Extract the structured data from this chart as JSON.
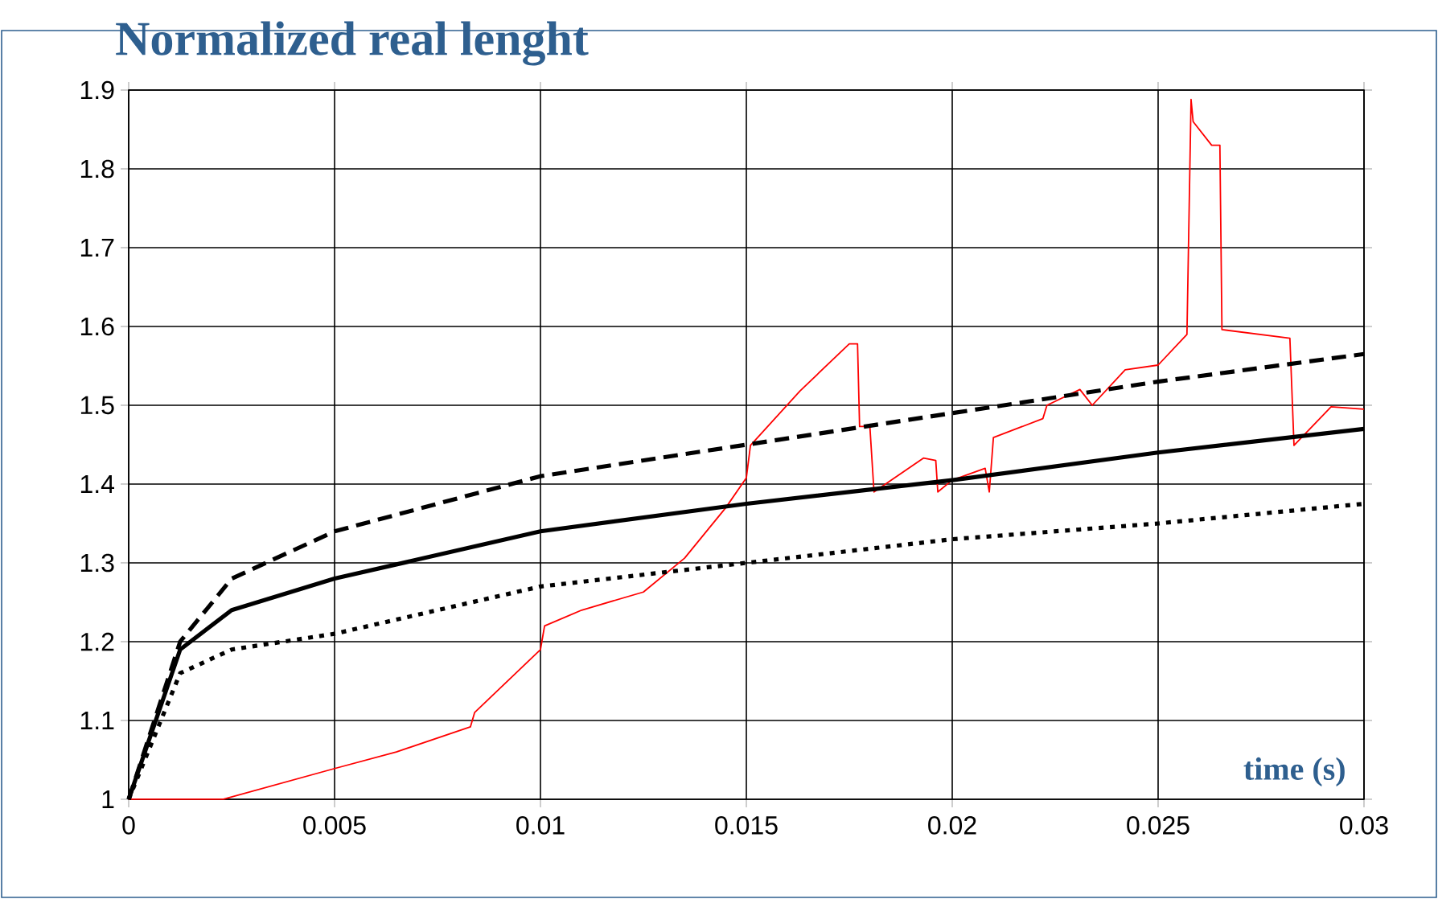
{
  "chart_data": {
    "type": "line",
    "title": "Normalized real lenght",
    "xlabel": "time (s)",
    "xlim": [
      0,
      0.03
    ],
    "xticks": [
      0,
      0.005,
      0.01,
      0.015,
      0.02,
      0.025,
      0.03
    ],
    "ylim": [
      1,
      1.9
    ],
    "yticks": [
      1,
      1.1,
      1.2,
      1.3,
      1.4,
      1.5,
      1.6,
      1.7,
      1.8,
      1.9
    ],
    "grid": true,
    "marker": "none",
    "series": [
      {
        "color": "#ff0000",
        "line_style": "solid",
        "x": [
          0,
          0.0023,
          0.005,
          0.0065,
          0.0083,
          0.0084,
          0.01,
          0.0101,
          0.011,
          0.0125,
          0.0135,
          0.0145,
          0.015,
          0.0151,
          0.0163,
          0.0175,
          0.0177,
          0.01775,
          0.018,
          0.0181,
          0.0193,
          0.0196,
          0.01965,
          0.02,
          0.0208,
          0.0209,
          0.021,
          0.0222,
          0.0223,
          0.0231,
          0.0234,
          0.0242,
          0.025,
          0.0257,
          0.0258,
          0.02585,
          0.0263,
          0.0265,
          0.02655,
          0.0282,
          0.0283,
          0.0292,
          0.03
        ],
        "values": [
          1,
          1,
          1.039,
          1.06,
          1.092,
          1.11,
          1.19,
          1.22,
          1.24,
          1.263,
          1.306,
          1.37,
          1.408,
          1.449,
          1.518,
          1.578,
          1.578,
          1.473,
          1.473,
          1.39,
          1.433,
          1.43,
          1.39,
          1.405,
          1.42,
          1.39,
          1.459,
          1.483,
          1.5,
          1.52,
          1.5,
          1.545,
          1.551,
          1.59,
          1.888,
          1.86,
          1.83,
          1.83,
          1.596,
          1.585,
          1.449,
          1.498,
          1.495
        ]
      },
      {
        "color": "#000000",
        "line_style": "solid",
        "x": [
          0,
          0.00125,
          0.0025,
          0.005,
          0.01,
          0.015,
          0.02,
          0.025,
          0.03
        ],
        "values": [
          1,
          1.19,
          1.24,
          1.28,
          1.34,
          1.375,
          1.405,
          1.44,
          1.47
        ]
      },
      {
        "color": "#000000",
        "line_style": "dashed",
        "x": [
          0,
          0.00125,
          0.0025,
          0.005,
          0.01,
          0.015,
          0.02,
          0.025,
          0.03
        ],
        "values": [
          1,
          1.2,
          1.28,
          1.34,
          1.41,
          1.45,
          1.49,
          1.53,
          1.565
        ]
      },
      {
        "color": "#000000",
        "line_style": "dotted",
        "x": [
          0,
          0.00125,
          0.0025,
          0.005,
          0.01,
          0.015,
          0.02,
          0.025,
          0.03
        ],
        "values": [
          1,
          1.16,
          1.19,
          1.21,
          1.27,
          1.3,
          1.33,
          1.35,
          1.375
        ]
      }
    ]
  }
}
